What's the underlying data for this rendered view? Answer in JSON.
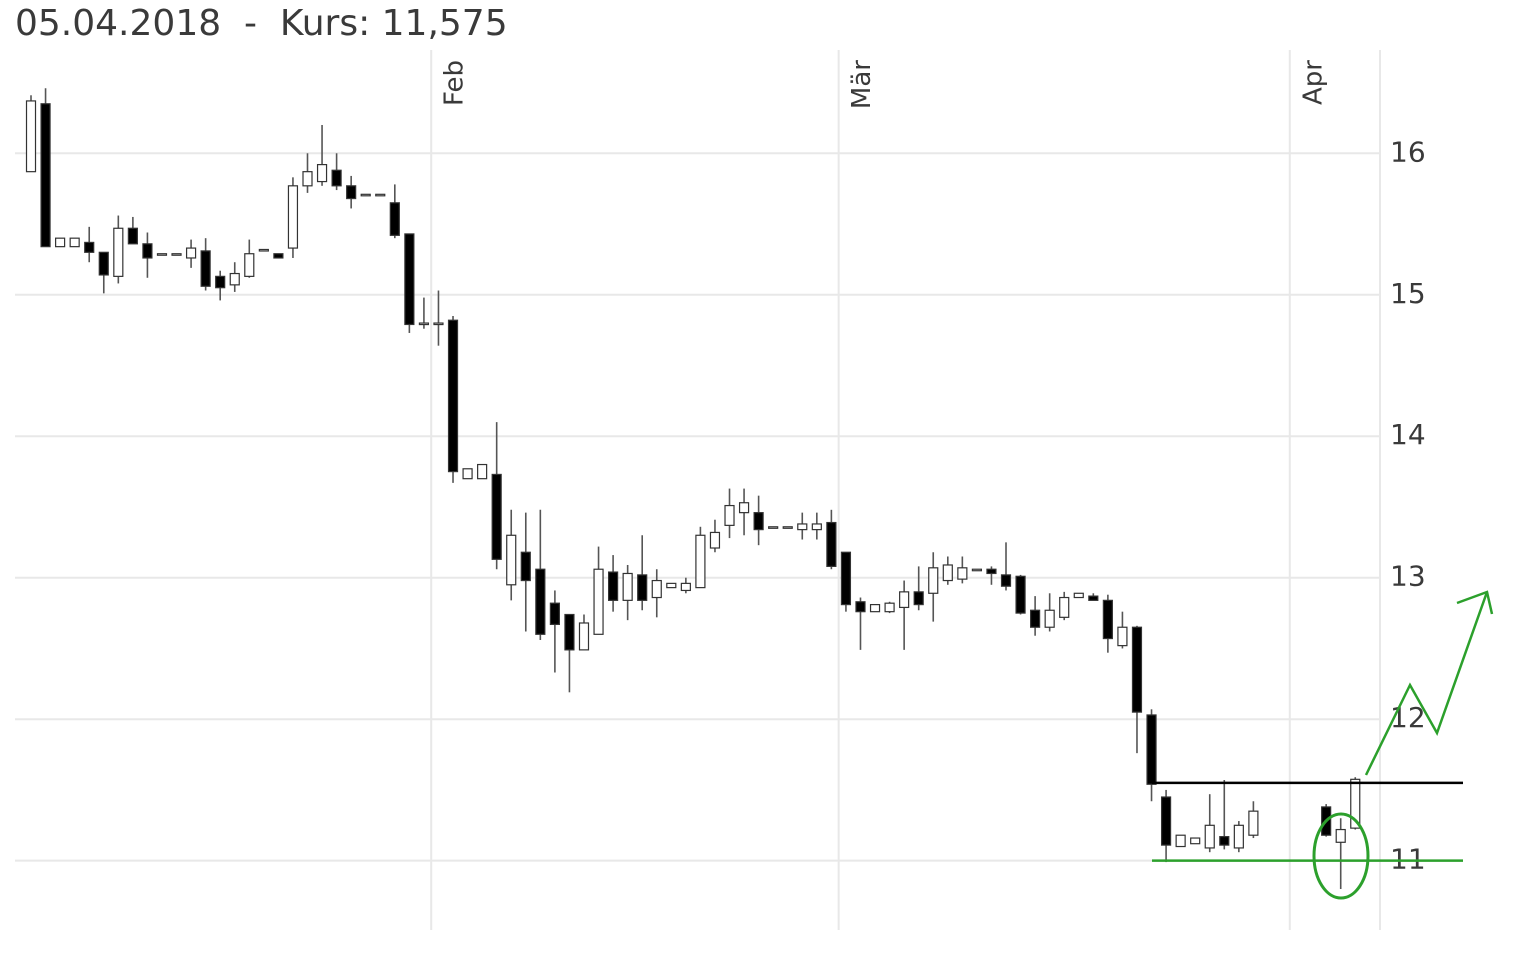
{
  "chart_data": {
    "type": "candlestick",
    "title": "05.04.2018  -  Kurs: 11,575",
    "x": [
      0,
      1,
      2,
      3,
      4,
      5,
      6,
      7,
      8,
      9,
      10,
      11,
      12,
      13,
      14,
      15,
      16,
      17,
      18,
      19,
      20,
      21,
      22,
      23,
      24,
      25,
      26,
      27,
      28,
      29,
      30,
      31,
      32,
      33,
      34,
      35,
      36,
      37,
      38,
      39,
      40,
      41,
      42,
      43,
      44,
      45,
      46,
      47,
      48,
      49,
      50,
      51,
      52,
      53,
      54,
      55,
      56,
      57,
      58,
      59,
      60,
      61,
      62,
      63,
      64,
      65,
      66,
      67,
      68,
      69,
      70,
      71,
      72,
      73,
      74,
      75,
      76,
      77,
      78,
      79,
      80,
      81,
      82,
      83,
      84,
      89,
      90,
      91
    ],
    "open": [
      15.87,
      16.35,
      15.34,
      15.34,
      15.37,
      15.3,
      15.13,
      15.47,
      15.36,
      15.29,
      15.29,
      15.26,
      15.31,
      15.13,
      15.07,
      15.13,
      15.32,
      15.29,
      15.33,
      15.77,
      15.8,
      15.88,
      15.77,
      15.71,
      15.71,
      15.65,
      15.43,
      14.8,
      14.8,
      14.82,
      13.7,
      13.7,
      13.73,
      12.95,
      13.18,
      13.06,
      12.82,
      12.74,
      12.49,
      12.6,
      13.04,
      12.84,
      13.02,
      12.86,
      12.93,
      12.91,
      12.93,
      13.21,
      13.37,
      13.46,
      13.46,
      13.36,
      13.36,
      13.34,
      13.34,
      13.39,
      13.18,
      12.83,
      12.76,
      12.76,
      12.79,
      12.9,
      12.89,
      12.98,
      12.99,
      13.06,
      13.06,
      13.02,
      13.01,
      12.77,
      12.65,
      12.72,
      12.86,
      12.87,
      12.84,
      12.52,
      12.65,
      12.03,
      11.45,
      11.1,
      11.12,
      11.09,
      11.17,
      11.09,
      11.18,
      11.38,
      11.13,
      11.23
    ],
    "high": [
      16.41,
      16.46,
      15.4,
      15.4,
      15.48,
      15.3,
      15.56,
      15.55,
      15.44,
      15.29,
      15.29,
      15.39,
      15.4,
      15.17,
      15.23,
      15.39,
      15.32,
      15.29,
      15.83,
      16.0,
      16.2,
      16.0,
      15.84,
      15.71,
      15.71,
      15.78,
      15.43,
      14.98,
      15.03,
      14.85,
      13.77,
      13.8,
      14.1,
      13.48,
      13.46,
      13.48,
      12.91,
      12.74,
      12.74,
      13.22,
      13.16,
      13.09,
      13.3,
      13.06,
      12.96,
      13.0,
      13.36,
      13.41,
      13.63,
      13.63,
      13.58,
      13.36,
      13.36,
      13.46,
      13.46,
      13.48,
      13.18,
      12.86,
      12.81,
      12.83,
      12.98,
      13.08,
      13.18,
      13.15,
      13.15,
      13.06,
      13.08,
      13.25,
      13.02,
      12.87,
      12.89,
      12.9,
      12.89,
      12.89,
      12.88,
      12.76,
      12.66,
      12.07,
      11.5,
      11.18,
      11.16,
      11.47,
      11.57,
      11.28,
      11.42,
      11.4,
      11.3,
      11.59
    ],
    "low": [
      15.87,
      15.34,
      15.34,
      15.34,
      15.23,
      15.01,
      15.08,
      15.36,
      15.12,
      15.29,
      15.29,
      15.19,
      15.03,
      14.96,
      15.02,
      15.12,
      15.32,
      15.26,
      15.26,
      15.72,
      15.77,
      15.74,
      15.61,
      15.71,
      15.71,
      15.4,
      14.73,
      14.76,
      14.64,
      13.67,
      13.7,
      13.7,
      13.06,
      12.84,
      12.62,
      12.56,
      12.33,
      12.19,
      12.49,
      12.6,
      12.76,
      12.7,
      12.77,
      12.72,
      12.93,
      12.89,
      12.93,
      13.18,
      13.28,
      13.3,
      13.23,
      13.36,
      13.36,
      13.27,
      13.27,
      13.06,
      12.76,
      12.49,
      12.76,
      12.75,
      12.49,
      12.77,
      12.69,
      12.95,
      12.96,
      13.06,
      12.95,
      12.91,
      12.74,
      12.59,
      12.62,
      12.7,
      12.86,
      12.84,
      12.47,
      12.5,
      11.76,
      11.42,
      10.99,
      11.1,
      11.12,
      11.06,
      11.08,
      11.06,
      11.16,
      11.17,
      10.8,
      11.22
    ],
    "close": [
      16.37,
      15.34,
      15.4,
      15.4,
      15.3,
      15.14,
      15.47,
      15.36,
      15.26,
      15.29,
      15.29,
      15.33,
      15.06,
      15.05,
      15.15,
      15.29,
      15.32,
      15.26,
      15.77,
      15.87,
      15.92,
      15.77,
      15.68,
      15.71,
      15.71,
      15.42,
      14.79,
      14.8,
      14.8,
      13.75,
      13.77,
      13.8,
      13.13,
      13.3,
      12.98,
      12.6,
      12.67,
      12.49,
      12.68,
      13.06,
      12.84,
      13.03,
      12.84,
      12.98,
      12.96,
      12.96,
      13.3,
      13.32,
      13.51,
      13.53,
      13.34,
      13.36,
      13.36,
      13.38,
      13.38,
      13.08,
      12.81,
      12.76,
      12.81,
      12.82,
      12.9,
      12.81,
      13.07,
      13.09,
      13.07,
      13.06,
      13.03,
      12.94,
      12.75,
      12.65,
      12.77,
      12.86,
      12.89,
      12.84,
      12.57,
      12.65,
      12.05,
      11.54,
      11.11,
      11.18,
      11.16,
      11.25,
      11.11,
      11.25,
      11.35,
      11.18,
      11.22,
      11.575
    ],
    "up_color": "#ffffff",
    "down_color": "#000000",
    "xlim": [
      -1.1,
      92.7
    ],
    "xticks": [
      {
        "value": 27.5,
        "label": "Feb"
      },
      {
        "value": 55.5,
        "label": "Mär"
      },
      {
        "value": 86.5,
        "label": "Apr"
      }
    ],
    "ylim": [
      10.51,
      16.73
    ],
    "yticks": [
      11,
      12,
      13,
      14,
      15,
      16
    ],
    "grid": true,
    "hlines": [
      {
        "value": 11.55,
        "color": "#000000"
      },
      {
        "value": 11,
        "color": "#2ca02c"
      }
    ]
  }
}
